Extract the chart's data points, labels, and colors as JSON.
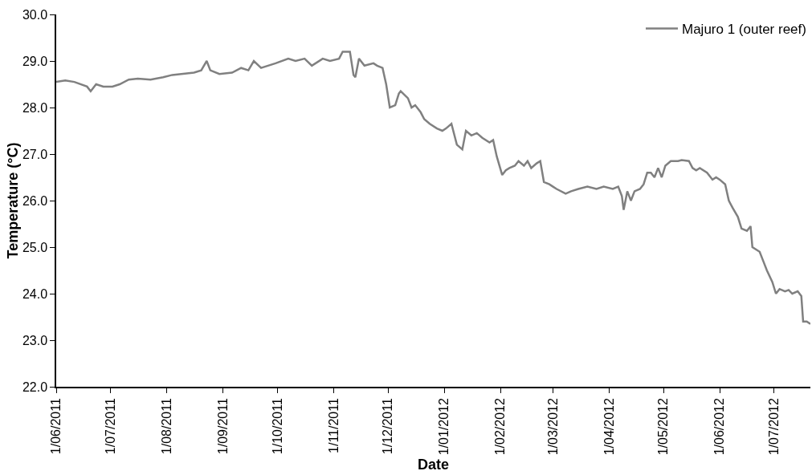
{
  "chart_data": {
    "type": "line",
    "xlabel": "Date",
    "ylabel": "Temperature (°C)",
    "x": [
      "2011-06-01",
      "2011-06-06",
      "2011-06-11",
      "2011-06-18",
      "2011-06-20",
      "2011-06-23",
      "2011-06-27",
      "2011-07-02",
      "2011-07-06",
      "2011-07-11",
      "2011-07-16",
      "2011-07-23",
      "2011-07-30",
      "2011-08-04",
      "2011-08-09",
      "2011-08-16",
      "2011-08-20",
      "2011-08-23",
      "2011-08-25",
      "2011-08-30",
      "2011-09-06",
      "2011-09-11",
      "2011-09-15",
      "2011-09-18",
      "2011-09-22",
      "2011-09-30",
      "2011-10-07",
      "2011-10-11",
      "2011-10-16",
      "2011-10-20",
      "2011-10-26",
      "2011-10-30",
      "2011-11-04",
      "2011-11-06",
      "2011-11-10",
      "2011-11-12",
      "2011-11-13",
      "2011-11-15",
      "2011-11-18",
      "2011-11-23",
      "2011-11-25",
      "2011-11-28",
      "2011-11-30",
      "2011-12-02",
      "2011-12-05",
      "2011-12-07",
      "2011-12-08",
      "2011-12-12",
      "2011-12-14",
      "2011-12-16",
      "2011-12-19",
      "2011-12-21",
      "2011-12-24",
      "2011-12-28",
      "2011-12-31",
      "2012-01-02",
      "2012-01-05",
      "2012-01-08",
      "2012-01-11",
      "2012-01-13",
      "2012-01-16",
      "2012-01-19",
      "2012-01-22",
      "2012-01-26",
      "2012-01-28",
      "2012-01-30",
      "2012-02-02",
      "2012-02-04",
      "2012-02-06",
      "2012-02-09",
      "2012-02-11",
      "2012-02-14",
      "2012-02-16",
      "2012-02-18",
      "2012-02-21",
      "2012-02-23",
      "2012-02-25",
      "2012-02-28",
      "2012-03-01",
      "2012-03-03",
      "2012-03-08",
      "2012-03-11",
      "2012-03-15",
      "2012-03-20",
      "2012-03-25",
      "2012-03-29",
      "2012-04-03",
      "2012-04-06",
      "2012-04-08",
      "2012-04-09",
      "2012-04-11",
      "2012-04-13",
      "2012-04-15",
      "2012-04-18",
      "2012-04-20",
      "2012-04-22",
      "2012-04-24",
      "2012-04-26",
      "2012-04-28",
      "2012-04-30",
      "2012-05-02",
      "2012-05-05",
      "2012-05-09",
      "2012-05-11",
      "2012-05-15",
      "2012-05-17",
      "2012-05-19",
      "2012-05-21",
      "2012-05-25",
      "2012-05-28",
      "2012-05-30",
      "2012-06-01",
      "2012-06-04",
      "2012-06-06",
      "2012-06-08",
      "2012-06-11",
      "2012-06-13",
      "2012-06-16",
      "2012-06-18",
      "2012-06-19",
      "2012-06-23",
      "2012-06-25",
      "2012-06-27",
      "2012-06-30",
      "2012-07-02",
      "2012-07-04",
      "2012-07-07",
      "2012-07-09",
      "2012-07-11",
      "2012-07-14",
      "2012-07-16",
      "2012-07-17",
      "2012-07-19",
      "2012-07-21"
    ],
    "series": [
      {
        "name": "Majuro 1 (outer reef)",
        "color": "#808080",
        "values": [
          28.55,
          28.58,
          28.55,
          28.45,
          28.35,
          28.5,
          28.45,
          28.45,
          28.5,
          28.6,
          28.62,
          28.6,
          28.65,
          28.7,
          28.72,
          28.75,
          28.8,
          29.0,
          28.8,
          28.72,
          28.75,
          28.85,
          28.8,
          29.0,
          28.85,
          28.95,
          29.05,
          29.0,
          29.05,
          28.9,
          29.05,
          29.0,
          29.05,
          29.2,
          29.2,
          28.7,
          28.65,
          29.05,
          28.9,
          28.95,
          28.9,
          28.85,
          28.5,
          28.0,
          28.05,
          28.3,
          28.35,
          28.2,
          28.0,
          28.05,
          27.9,
          27.75,
          27.65,
          27.55,
          27.5,
          27.55,
          27.65,
          27.2,
          27.1,
          27.5,
          27.4,
          27.45,
          27.35,
          27.25,
          27.3,
          26.95,
          26.55,
          26.65,
          26.7,
          26.75,
          26.85,
          26.75,
          26.85,
          26.7,
          26.8,
          26.85,
          26.4,
          26.35,
          26.3,
          26.25,
          26.15,
          26.2,
          26.25,
          26.3,
          26.25,
          26.3,
          26.25,
          26.3,
          26.1,
          25.8,
          26.2,
          26.0,
          26.2,
          26.25,
          26.35,
          26.6,
          26.6,
          26.5,
          26.7,
          26.5,
          26.75,
          26.85,
          26.85,
          26.87,
          26.85,
          26.7,
          26.65,
          26.7,
          26.6,
          26.45,
          26.5,
          26.45,
          26.35,
          26.0,
          25.85,
          25.65,
          25.4,
          25.35,
          25.45,
          25.0,
          24.9,
          24.7,
          24.5,
          24.25,
          24.0,
          24.1,
          24.05,
          24.08,
          24.0,
          24.05,
          23.95,
          23.4,
          23.4,
          23.35
        ]
      }
    ],
    "xlim": [
      "2011-06-01",
      "2012-07-21"
    ],
    "xticks": [
      {
        "value": "2011-06-01",
        "label": "1/06/2011"
      },
      {
        "value": "2011-07-01",
        "label": "1/07/2011"
      },
      {
        "value": "2011-08-01",
        "label": "1/08/2011"
      },
      {
        "value": "2011-09-01",
        "label": "1/09/2011"
      },
      {
        "value": "2011-10-01",
        "label": "1/10/2011"
      },
      {
        "value": "2011-11-01",
        "label": "1/11/2011"
      },
      {
        "value": "2011-12-01",
        "label": "1/12/2011"
      },
      {
        "value": "2012-01-01",
        "label": "1/01/2012"
      },
      {
        "value": "2012-02-01",
        "label": "1/02/2012"
      },
      {
        "value": "2012-03-01",
        "label": "1/03/2012"
      },
      {
        "value": "2012-04-01",
        "label": "1/04/2012"
      },
      {
        "value": "2012-05-01",
        "label": "1/05/2012"
      },
      {
        "value": "2012-06-01",
        "label": "1/06/2012"
      },
      {
        "value": "2012-07-01",
        "label": "1/07/2012"
      }
    ],
    "ylim": [
      22.0,
      30.0
    ],
    "yticks": [
      {
        "value": 22,
        "label": "22.0"
      },
      {
        "value": 23,
        "label": "23.0"
      },
      {
        "value": 24,
        "label": "24.0"
      },
      {
        "value": 25,
        "label": "25.0"
      },
      {
        "value": 26,
        "label": "26.0"
      },
      {
        "value": 27,
        "label": "27.0"
      },
      {
        "value": 28,
        "label": "28.0"
      },
      {
        "value": 29,
        "label": "29.0"
      },
      {
        "value": 30,
        "label": "30.0"
      }
    ],
    "grid": false,
    "legend": "top right",
    "marker": "none",
    "line_style": "solid"
  }
}
